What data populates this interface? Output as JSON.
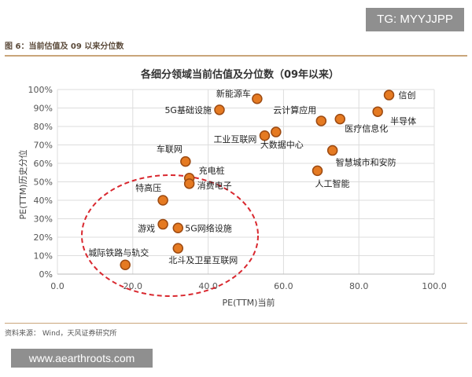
{
  "header": {
    "tag": "TG: MYYJJPP"
  },
  "figure_label": "图 6：当前估值及 09 以来分位数",
  "source": "资料来源：  Wind，天风证券研究所",
  "watermark": "www.aearthroots.com",
  "colors": {
    "point_fill": "#e57a22",
    "point_stroke": "#9c4a12",
    "circle": "#d9282f",
    "grid": "#dddddd",
    "rule": "#c9a57a"
  },
  "chart_data": {
    "type": "scatter",
    "title": "各细分领域当前估值及分位数（09年以来）",
    "xlabel": "PE(TTM)当前",
    "ylabel": "PE(TTM)历史分位",
    "xlim": [
      0,
      100
    ],
    "ylim": [
      0,
      100
    ],
    "xticks": [
      "0.0",
      "20.0",
      "40.0",
      "60.0",
      "80.0",
      "100.0"
    ],
    "yticks": [
      "0%",
      "10%",
      "20%",
      "30%",
      "40%",
      "50%",
      "60%",
      "70%",
      "80%",
      "90%",
      "100%"
    ],
    "grid": true,
    "points": [
      {
        "name": "信创",
        "x": 88,
        "y": 97
      },
      {
        "name": "新能源车",
        "x": 53,
        "y": 95
      },
      {
        "name": "5G基础设施",
        "x": 43,
        "y": 89
      },
      {
        "name": "半导体",
        "x": 85,
        "y": 88
      },
      {
        "name": "云计算应用",
        "x": 70,
        "y": 83
      },
      {
        "name": "医疗信息化",
        "x": 75,
        "y": 84
      },
      {
        "name": "工业互联网",
        "x": 55,
        "y": 75
      },
      {
        "name": "大数据中心",
        "x": 58,
        "y": 77
      },
      {
        "name": "智慧城市和安防",
        "x": 73,
        "y": 67
      },
      {
        "name": "车联网",
        "x": 34,
        "y": 61
      },
      {
        "name": "人工智能",
        "x": 69,
        "y": 56
      },
      {
        "name": "充电桩",
        "x": 35,
        "y": 52
      },
      {
        "name": "消费电子",
        "x": 35,
        "y": 49
      },
      {
        "name": "特高压",
        "x": 28,
        "y": 40
      },
      {
        "name": "游戏",
        "x": 28,
        "y": 27
      },
      {
        "name": "5G网络设施",
        "x": 32,
        "y": 25
      },
      {
        "name": "北斗及卫星互联网",
        "x": 32,
        "y": 14
      },
      {
        "name": "城际铁路与轨交",
        "x": 18,
        "y": 5
      }
    ]
  }
}
